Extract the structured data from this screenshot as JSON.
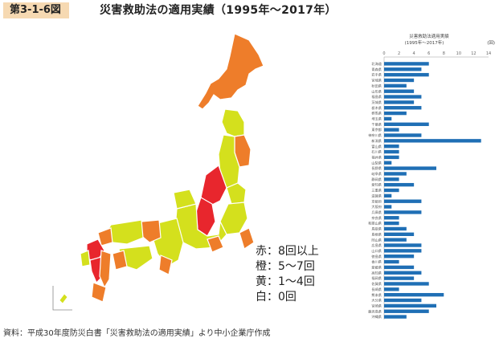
{
  "figure": {
    "label": "第3-1-6図",
    "title": "災害救助法の適用実績（1995年〜2017年）"
  },
  "legend": [
    "赤：8回以上",
    "橙：5〜7回",
    "黄：1〜4回",
    "白：0回"
  ],
  "colors": {
    "red": "#e8262d",
    "orange": "#ee7d2a",
    "yellow": "#d4e01d",
    "white": "#ffffff",
    "bar": "#1f6fb5",
    "label_bg": "#f6d9b2"
  },
  "source": "資料：平成30年度防災白書「災害救助法の適用実績」より中小企業庁作成",
  "chart_data": {
    "type": "bar",
    "orientation": "horizontal",
    "title": "災害救助法適用実績",
    "subtitle": "(1995年〜2017年)",
    "unit": "(回)",
    "xlim": [
      0,
      14
    ],
    "xticks": [
      0,
      2,
      4,
      6,
      8,
      10,
      12,
      14
    ],
    "categories": [
      "北海道",
      "青森県",
      "岩手県",
      "宮城県",
      "秋田県",
      "山形県",
      "福島県",
      "茨城県",
      "栃木県",
      "群馬県",
      "埼玉県",
      "千葉県",
      "東京都",
      "神奈川県",
      "新潟県",
      "富山県",
      "石川県",
      "福井県",
      "山梨県",
      "長野県",
      "岐阜県",
      "静岡県",
      "愛知県",
      "三重県",
      "滋賀県",
      "京都府",
      "大阪府",
      "兵庫県",
      "奈良県",
      "和歌山県",
      "鳥取県",
      "島根県",
      "岡山県",
      "広島県",
      "山口県",
      "徳島県",
      "香川県",
      "愛媛県",
      "高知県",
      "福岡県",
      "佐賀県",
      "長崎県",
      "熊本県",
      "大分県",
      "宮崎県",
      "鹿児島県",
      "沖縄県"
    ],
    "values": [
      6,
      5,
      6,
      4,
      3,
      4,
      5,
      4,
      5,
      3,
      1,
      6,
      2,
      5,
      13,
      2,
      2,
      2,
      1,
      7,
      3,
      2,
      4,
      2,
      1,
      5,
      1,
      5,
      2,
      2,
      3,
      4,
      3,
      5,
      5,
      4,
      2,
      4,
      5,
      4,
      6,
      2,
      8,
      5,
      7,
      6,
      3
    ]
  }
}
